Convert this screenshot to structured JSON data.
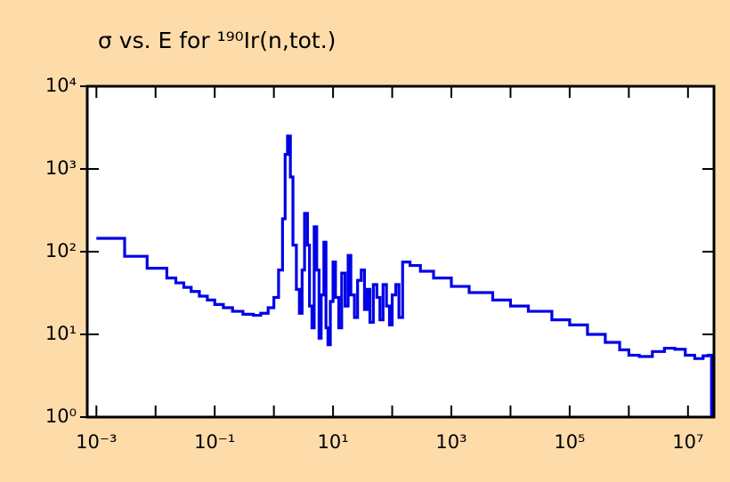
{
  "chart_data": {
    "type": "line",
    "title": "σ vs. E for ¹⁹⁰Ir(n,tot.)",
    "log_x": true,
    "log_y": true,
    "step": "post",
    "background": "#fddcaa",
    "x": [
      0.001,
      0.003,
      0.0072,
      0.0155,
      0.022,
      0.03,
      0.04,
      0.055,
      0.075,
      0.1,
      0.14,
      0.2,
      0.3,
      0.45,
      0.6,
      0.8,
      1.0,
      1.2,
      1.4,
      1.55,
      1.7,
      1.9,
      2.1,
      2.4,
      2.7,
      3.0,
      3.3,
      3.7,
      4.0,
      4.4,
      4.8,
      5.3,
      5.8,
      6.3,
      7.0,
      7.6,
      8.2,
      9.0,
      10,
      11,
      12.5,
      14,
      16,
      18,
      20,
      23,
      26,
      30,
      34,
      38,
      42,
      48,
      55,
      62,
      70,
      80,
      90,
      100,
      115,
      130,
      150,
      200,
      300,
      500,
      1000,
      2000,
      5000,
      10000,
      20000,
      50000,
      100000,
      200000,
      400000,
      700000,
      1000000,
      1500000,
      2500000,
      4000000,
      6000000,
      9000000,
      13000000,
      18000000,
      22000000,
      25000000
    ],
    "series": [
      {
        "color": "#0000e6",
        "values": [
          145,
          88,
          63,
          48,
          42,
          37,
          33,
          29,
          26,
          23,
          21,
          19,
          17.5,
          17,
          18,
          21,
          28,
          60,
          250,
          1500,
          2500,
          800,
          120,
          35,
          18,
          60,
          290,
          120,
          22,
          12,
          200,
          60,
          9,
          30,
          130,
          12,
          7.5,
          25,
          75,
          28,
          12,
          55,
          22,
          90,
          30,
          16,
          45,
          60,
          20,
          35,
          14,
          40,
          28,
          15,
          40,
          22,
          13,
          30,
          40,
          16,
          75,
          68,
          58,
          48,
          38,
          32,
          26,
          22,
          19,
          15,
          13,
          10,
          8,
          6.5,
          5.6,
          5.4,
          6.2,
          6.8,
          6.6,
          5.6,
          5.1,
          5.5,
          5.6,
          1
        ]
      }
    ],
    "xlim": [
      0.0007,
      27500000
    ],
    "ylim": [
      1,
      10000
    ],
    "xticks": [
      {
        "value": 0.001,
        "label": "10⁻³"
      },
      {
        "value": 0.1,
        "label": "10⁻¹"
      },
      {
        "value": 10,
        "label": "10¹"
      },
      {
        "value": 1000,
        "label": "10³"
      },
      {
        "value": 100000,
        "label": "10⁵"
      },
      {
        "value": 10000000,
        "label": "10⁷"
      }
    ],
    "xticks_minor": [
      0.01,
      1,
      100,
      10000,
      1000000
    ],
    "yticks": [
      {
        "value": 1,
        "label": "10⁰"
      },
      {
        "value": 10,
        "label": "10¹"
      },
      {
        "value": 100,
        "label": "10²"
      },
      {
        "value": 1000,
        "label": "10³"
      },
      {
        "value": 10000,
        "label": "10⁴"
      }
    ]
  }
}
